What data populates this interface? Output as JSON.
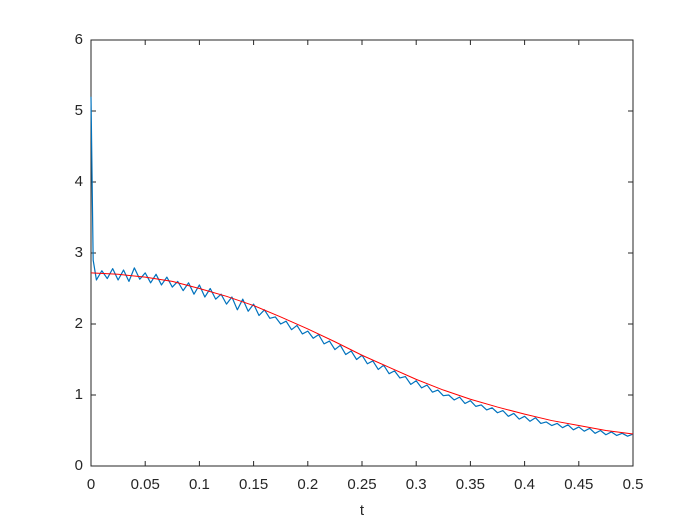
{
  "chart_data": {
    "type": "line",
    "xlabel": "t",
    "xlim": [
      0,
      0.5
    ],
    "ylim": [
      0,
      6
    ],
    "xticks": [
      0,
      0.05,
      0.1,
      0.15,
      0.2,
      0.25,
      0.3,
      0.35,
      0.4,
      0.45,
      0.5
    ],
    "yticks": [
      0,
      1,
      2,
      3,
      4,
      5,
      6
    ],
    "grid": false,
    "series": [
      {
        "color": "#0072bd",
        "x": [
          0,
          0.002,
          0.005,
          0.01,
          0.015,
          0.02,
          0.025,
          0.03,
          0.035,
          0.04,
          0.045,
          0.05,
          0.055,
          0.06,
          0.065,
          0.07,
          0.075,
          0.08,
          0.085,
          0.09,
          0.095,
          0.1,
          0.105,
          0.11,
          0.115,
          0.12,
          0.125,
          0.13,
          0.135,
          0.14,
          0.145,
          0.15,
          0.155,
          0.16,
          0.165,
          0.17,
          0.175,
          0.18,
          0.185,
          0.19,
          0.195,
          0.2,
          0.205,
          0.21,
          0.215,
          0.22,
          0.225,
          0.23,
          0.235,
          0.24,
          0.245,
          0.25,
          0.255,
          0.26,
          0.265,
          0.27,
          0.275,
          0.28,
          0.285,
          0.29,
          0.295,
          0.3,
          0.305,
          0.31,
          0.315,
          0.32,
          0.325,
          0.33,
          0.335,
          0.34,
          0.345,
          0.35,
          0.355,
          0.36,
          0.365,
          0.37,
          0.375,
          0.38,
          0.385,
          0.39,
          0.395,
          0.4,
          0.405,
          0.41,
          0.415,
          0.42,
          0.425,
          0.43,
          0.435,
          0.44,
          0.445,
          0.45,
          0.455,
          0.46,
          0.465,
          0.47,
          0.475,
          0.48,
          0.485,
          0.49,
          0.495,
          0.5
        ],
        "values": [
          5.2,
          2.9,
          2.62,
          2.75,
          2.64,
          2.78,
          2.62,
          2.76,
          2.6,
          2.79,
          2.63,
          2.72,
          2.58,
          2.7,
          2.55,
          2.66,
          2.52,
          2.6,
          2.47,
          2.58,
          2.42,
          2.55,
          2.38,
          2.5,
          2.35,
          2.42,
          2.28,
          2.38,
          2.2,
          2.35,
          2.18,
          2.28,
          2.12,
          2.2,
          2.08,
          2.1,
          2.0,
          2.04,
          1.92,
          1.98,
          1.86,
          1.9,
          1.8,
          1.85,
          1.72,
          1.76,
          1.64,
          1.7,
          1.57,
          1.62,
          1.5,
          1.56,
          1.44,
          1.48,
          1.36,
          1.42,
          1.3,
          1.34,
          1.24,
          1.26,
          1.15,
          1.2,
          1.1,
          1.14,
          1.04,
          1.07,
          0.99,
          1.0,
          0.93,
          0.97,
          0.88,
          0.92,
          0.84,
          0.86,
          0.79,
          0.82,
          0.75,
          0.78,
          0.7,
          0.74,
          0.66,
          0.7,
          0.63,
          0.68,
          0.6,
          0.62,
          0.57,
          0.6,
          0.54,
          0.58,
          0.51,
          0.55,
          0.49,
          0.53,
          0.46,
          0.5,
          0.44,
          0.48,
          0.43,
          0.46,
          0.42,
          0.45
        ]
      },
      {
        "color": "#ff0000",
        "x": [
          0,
          0.025,
          0.05,
          0.075,
          0.1,
          0.125,
          0.15,
          0.175,
          0.2,
          0.225,
          0.25,
          0.275,
          0.3,
          0.325,
          0.35,
          0.375,
          0.4,
          0.425,
          0.45,
          0.475,
          0.5
        ],
        "values": [
          2.72,
          2.7,
          2.66,
          2.6,
          2.5,
          2.39,
          2.26,
          2.1,
          1.93,
          1.75,
          1.56,
          1.39,
          1.22,
          1.07,
          0.94,
          0.83,
          0.73,
          0.64,
          0.57,
          0.5,
          0.45
        ]
      }
    ]
  }
}
